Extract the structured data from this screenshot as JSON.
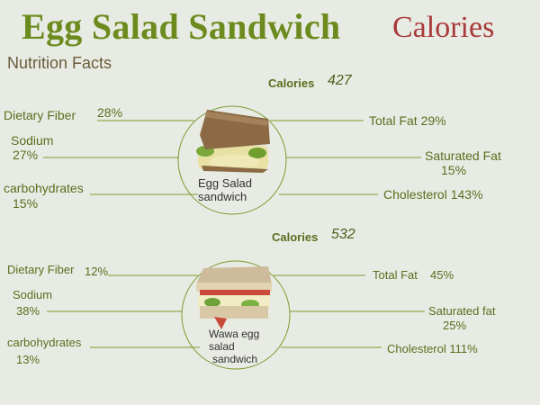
{
  "header": {
    "title": "Egg Salad Sandwich",
    "title_suffix": "Calories",
    "subtitle": "Nutrition Facts"
  },
  "sandwich1": {
    "calories_label": "Calories",
    "calories_value": "427",
    "caption_line1": "Egg Salad",
    "caption_line2": "sandwich",
    "fiber_label": "Dietary Fiber",
    "fiber_value": "28%",
    "sodium_label": "Sodium",
    "sodium_value": "27%",
    "carbs_label": "carbohydrates",
    "carbs_value": "15%",
    "totalfat_label": "Total Fat",
    "totalfat_value": "29%",
    "satfat_label": "Saturated Fat",
    "satfat_value": "15%",
    "chol_label": "Cholesterol",
    "chol_value": "143%"
  },
  "sandwich2": {
    "calories_label": "Calories",
    "calories_value": "532",
    "caption_line1": "Wawa egg",
    "caption_line2": "salad",
    "caption_line3": "sandwich",
    "fiber_label": "Dietary Fiber",
    "fiber_value": "12%",
    "sodium_label": "Sodium",
    "sodium_value": "38%",
    "carbs_label": "carbohydrates",
    "carbs_value": "13%",
    "totalfat_label": "Total Fat",
    "totalfat_value": "45%",
    "satfat_label": "Saturated fat",
    "satfat_value": "25%",
    "chol_label": "Cholesterol",
    "chol_value": "111%"
  },
  "colors": {
    "title_green": "#6c8b1e",
    "title_red": "#a83a3a",
    "line_green": "#7c9a2e"
  }
}
